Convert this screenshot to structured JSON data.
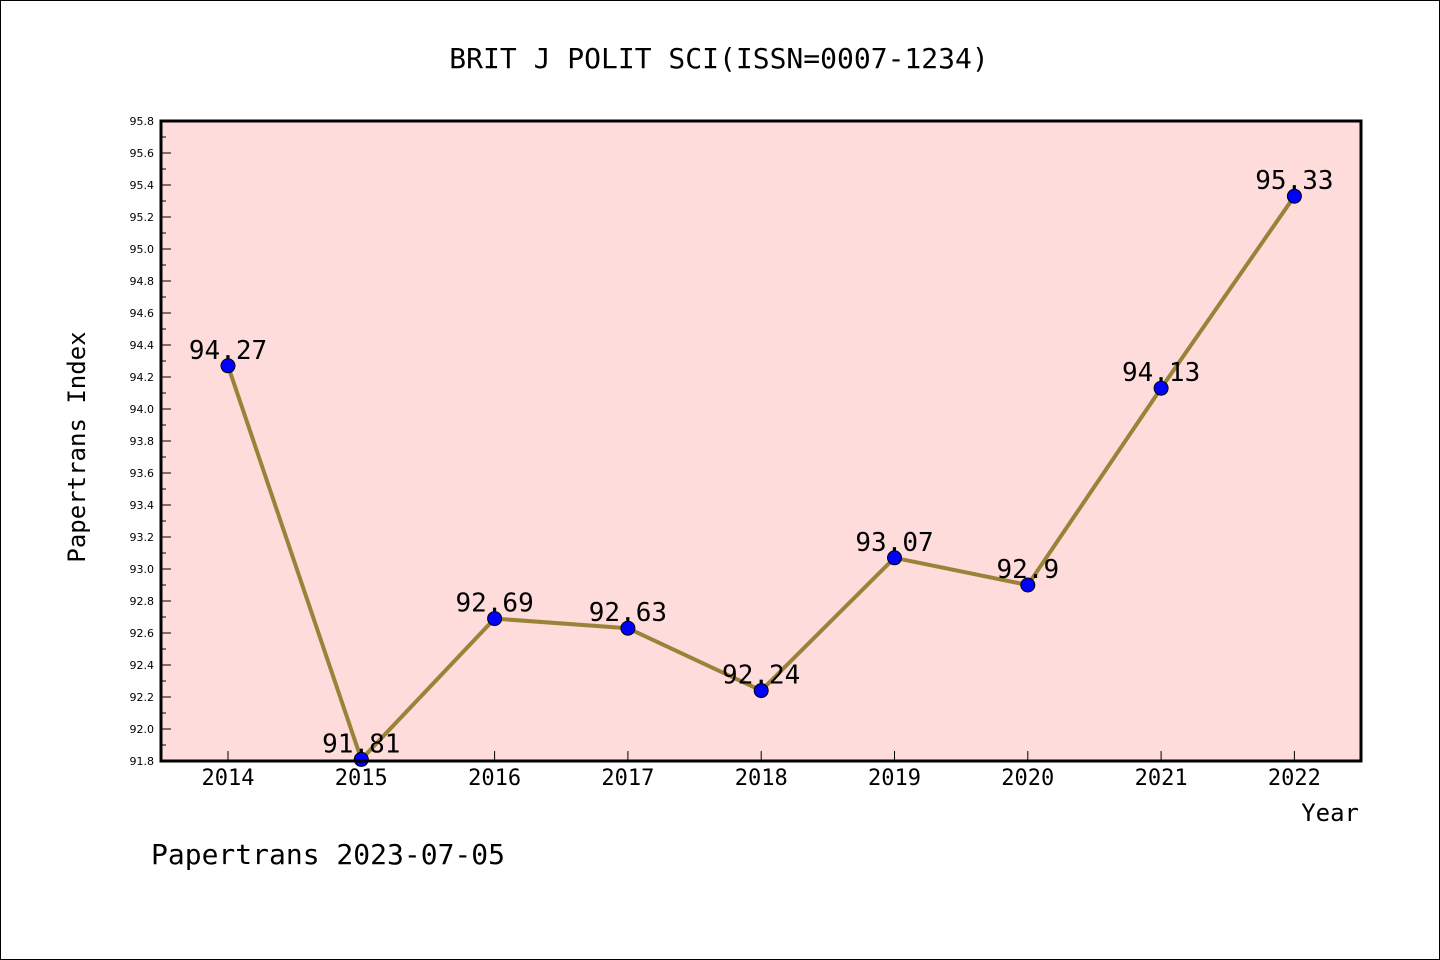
{
  "chart_data": {
    "type": "line",
    "title": "BRIT J POLIT SCI(ISSN=0007-1234)",
    "xlabel": "Year",
    "ylabel": "Papertrans Index",
    "x": [
      "2014",
      "2015",
      "2016",
      "2017",
      "2018",
      "2019",
      "2020",
      "2021",
      "2022"
    ],
    "values": [
      94.27,
      91.81,
      92.69,
      92.63,
      92.24,
      93.07,
      92.9,
      94.13,
      95.33
    ],
    "data_labels": [
      "94.27",
      "91.81",
      "92.69",
      "92.63",
      "92.24",
      "93.07",
      "92.9",
      "94.13",
      "95.33"
    ],
    "ylim": [
      91.8,
      95.8
    ],
    "yticks": [
      "91.8",
      "92.0",
      "92.2",
      "92.4",
      "92.6",
      "92.8",
      "93.0",
      "93.2",
      "93.4",
      "93.6",
      "93.8",
      "94.0",
      "94.2",
      "94.4",
      "94.6",
      "94.8",
      "95.0",
      "95.2",
      "95.4",
      "95.6",
      "95.8"
    ],
    "grid": false,
    "legend": "none",
    "colors": {
      "plot_background": "#fddcdb",
      "line": "#9a8239",
      "marker": "#0000ff"
    }
  },
  "footer": "Papertrans 2023-07-05"
}
